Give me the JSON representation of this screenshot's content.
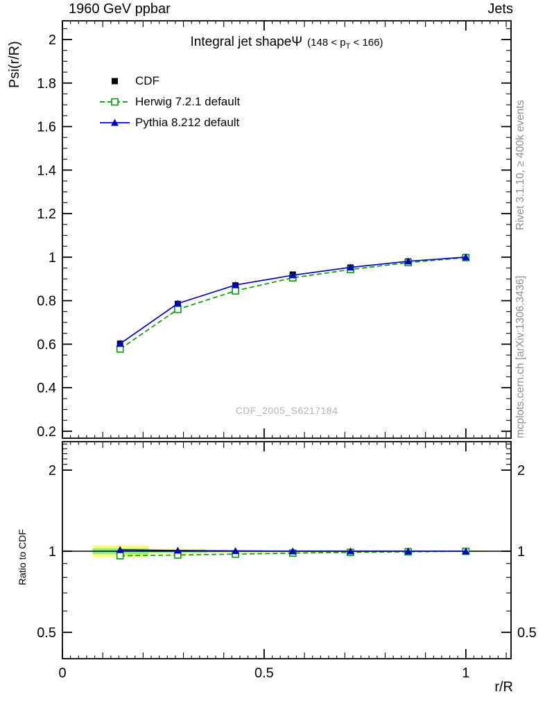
{
  "header": {
    "left": "1960 GeV ppbar",
    "right": "Jets"
  },
  "title": {
    "main": "Integral jet shape",
    "psi": "Ψ",
    "range_pre": "(148 < p",
    "range_sub": "T",
    "range_post": " < 166)"
  },
  "axes": {
    "xlabel": "r/R",
    "ylabel_main": "Psi(r/R)",
    "ylabel_ratio": "Ratio to CDF"
  },
  "side_notes": {
    "top": "Rivet 3.1.10, ≥ 400k events",
    "bottom": "mcplots.cern.ch [arXiv:1306.3436]"
  },
  "watermark": "CDF_2005_S6217184",
  "colors": {
    "cdf": "#000000",
    "herwig": "#00a000",
    "pythia": "#0000c8",
    "band_outer": "#ffff70",
    "band_inner": "#8dee8d",
    "axis": "#000000",
    "note_gray": "#8f8f8f",
    "watermark_gray": "#b5b5b5"
  },
  "chart_data": [
    {
      "type": "line",
      "panel": "main",
      "title": "Integral jet shape Ψ (148 < p_T < 166)",
      "xlabel": "r/R",
      "ylabel": "Psi(r/R)",
      "xlim": [
        0,
        1.112
      ],
      "ylim": [
        0.168,
        2.086
      ],
      "xticks": [
        0,
        0.5,
        1
      ],
      "yticks": [
        0.2,
        0.4,
        0.6,
        0.8,
        1.0,
        1.2,
        1.4,
        1.6,
        1.8,
        2.0
      ],
      "grid": false,
      "legend_position": "top-left",
      "x": [
        0.143,
        0.286,
        0.429,
        0.571,
        0.714,
        0.857,
        1.0
      ],
      "series": [
        {
          "name": "CDF",
          "color": "#000000",
          "marker": "square-filled",
          "line": "none",
          "values": [
            0.6,
            0.785,
            0.87,
            0.92,
            0.952,
            0.98,
            1.0
          ],
          "errors": [
            0.015,
            0.012,
            0.01,
            0.008,
            0.006,
            0.004,
            0.003
          ]
        },
        {
          "name": "Herwig 7.2.1 default",
          "color": "#00a000",
          "marker": "square-open",
          "line": "dashed",
          "values": [
            0.578,
            0.76,
            0.845,
            0.905,
            0.943,
            0.975,
            0.998
          ]
        },
        {
          "name": "Pythia 8.212 default",
          "color": "#0000c8",
          "marker": "triangle-filled",
          "line": "solid",
          "values": [
            0.602,
            0.787,
            0.872,
            0.917,
            0.953,
            0.981,
            1.0
          ]
        }
      ]
    },
    {
      "type": "line",
      "panel": "ratio",
      "ylabel": "Ratio to CDF",
      "yscale": "log",
      "xlim": [
        0,
        1.112
      ],
      "ylim": [
        0.399,
        2.55
      ],
      "xticks": [
        0,
        0.5,
        1
      ],
      "yticks": [
        0.5,
        1,
        2
      ],
      "reference_line": 1,
      "x": [
        0.143,
        0.286,
        0.429,
        0.571,
        0.714,
        0.857,
        1.0
      ],
      "band": {
        "boundaries": [
          0.075,
          0.214,
          0.357,
          0.5,
          0.643,
          0.786,
          0.929,
          1.05
        ],
        "outer_half_width": [
          0.05,
          0.022,
          0.013,
          0.01,
          0.008,
          0.007,
          0.006
        ],
        "inner_half_width": [
          0.025,
          0.013,
          0.008,
          0.006,
          0.005,
          0.004,
          0.004
        ]
      },
      "series": [
        {
          "name": "Herwig 7.2.1 default",
          "color": "#00a000",
          "marker": "square-open",
          "line": "dashed",
          "values": [
            0.962,
            0.968,
            0.975,
            0.984,
            0.99,
            0.995,
            0.999
          ]
        },
        {
          "name": "Pythia 8.212 default",
          "color": "#0000c8",
          "marker": "triangle-filled",
          "line": "solid",
          "values": [
            1.012,
            1.006,
            1.002,
            1.0,
            1.0,
            1.0,
            1.0
          ]
        }
      ]
    }
  ]
}
